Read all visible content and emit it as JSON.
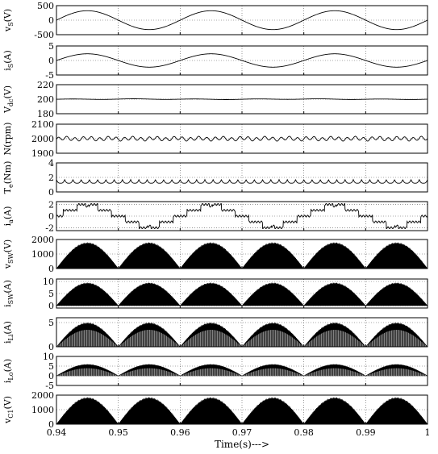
{
  "x_axis": {
    "label": "Time(s)--->",
    "range": [
      0.94,
      1.0
    ],
    "ticks": [
      0.94,
      0.95,
      0.96,
      0.97,
      0.98,
      0.99,
      1
    ],
    "tick_labels": [
      "0.94",
      "0.95",
      "0.96",
      "0.97",
      "0.98",
      "0.99",
      "1"
    ]
  },
  "chart_data": [
    {
      "type": "line",
      "ylabel": "v_S(V)",
      "ylabel_main": "v",
      "ylabel_sub": "S",
      "ylabel_unit": "(V)",
      "ylim": [
        -500,
        500
      ],
      "yticks": [
        -500,
        0,
        500
      ],
      "ytick_labels": [
        "-500",
        "0",
        "500"
      ],
      "grid": true,
      "color": "#000000",
      "waveform": {
        "kind": "sine",
        "amplitude": 325,
        "frequency_hz": 50,
        "dc_offset": 0
      }
    },
    {
      "type": "line",
      "ylabel": "i_S(A)",
      "ylabel_main": "i",
      "ylabel_sub": "S",
      "ylabel_unit": "(A)",
      "ylim": [
        -5,
        5
      ],
      "yticks": [
        -5,
        0,
        5
      ],
      "ytick_labels": [
        "-5",
        "0",
        "5"
      ],
      "grid": true,
      "color": "#000000",
      "waveform": {
        "kind": "sine",
        "amplitude": 2.3,
        "frequency_hz": 50,
        "dc_offset": 0
      }
    },
    {
      "type": "line",
      "ylabel": "V_dc(V)",
      "ylabel_main": "V",
      "ylabel_sub": "dc",
      "ylabel_unit": "(V)",
      "ylim": [
        180,
        220
      ],
      "yticks": [
        180,
        200,
        220
      ],
      "ytick_labels": [
        "180",
        "200",
        "220"
      ],
      "grid": true,
      "color": "#000000",
      "waveform": {
        "kind": "ripple",
        "dc_offset": 200,
        "amplitude": 0.4,
        "frequency_hz": 100
      }
    },
    {
      "type": "line",
      "ylabel": "N(rpm)",
      "ylabel_main": "N",
      "ylabel_sub": "",
      "ylabel_unit": "(rpm)",
      "ylim": [
        1900,
        2100
      ],
      "yticks": [
        1900,
        2000,
        2100
      ],
      "ytick_labels": [
        "1900",
        "2000",
        "2100"
      ],
      "grid": true,
      "color": "#000000",
      "waveform": {
        "kind": "ripple",
        "dc_offset": 2000,
        "amplitude": 12,
        "frequency_hz": 750
      }
    },
    {
      "type": "line",
      "ylabel": "T_e(Nm)",
      "ylabel_main": "T",
      "ylabel_sub": "e",
      "ylabel_unit": "(Nm)",
      "ylim": [
        0,
        4
      ],
      "yticks": [
        0,
        2,
        4
      ],
      "ytick_labels": [
        "0",
        "2",
        "4"
      ],
      "grid": true,
      "color": "#000000",
      "waveform": {
        "kind": "cusps",
        "dc_offset": 1.2,
        "amplitude": 0.5,
        "frequency_hz": 750
      }
    },
    {
      "type": "line",
      "ylabel": "i_a(A)",
      "ylabel_main": "i",
      "ylabel_sub": "a",
      "ylabel_unit": "(A)",
      "ylim": [
        -2.5,
        2.5
      ],
      "yticks": [
        -2,
        0,
        2
      ],
      "ytick_labels": [
        "-2",
        "0",
        "2"
      ],
      "grid": true,
      "color": "#000000",
      "waveform": {
        "kind": "phase_current",
        "amplitude": 2,
        "frequency_hz": 50
      }
    },
    {
      "type": "area",
      "ylabel": "v_SW(V)",
      "ylabel_main": "v",
      "ylabel_sub": "SW",
      "ylabel_unit": "(V)",
      "ylim": [
        0,
        2000
      ],
      "yticks": [
        0,
        1000,
        2000
      ],
      "ytick_labels": [
        "0",
        "1000",
        "2000"
      ],
      "grid": true,
      "color": "#000000",
      "waveform": {
        "kind": "pwm_envelope",
        "peak": 1800,
        "floor": 0,
        "frequency_hz": 100
      }
    },
    {
      "type": "area",
      "ylabel": "i_SW(A)",
      "ylabel_main": "i",
      "ylabel_sub": "SW",
      "ylabel_unit": "(A)",
      "ylim": [
        -1,
        11
      ],
      "yticks": [
        0,
        5,
        10
      ],
      "ytick_labels": [
        "0",
        "5",
        "10"
      ],
      "grid": true,
      "color": "#000000",
      "waveform": {
        "kind": "pwm_envelope",
        "peak": 9.5,
        "floor": 0,
        "frequency_hz": 100
      }
    },
    {
      "type": "area",
      "ylabel": "i_Li(A)",
      "ylabel_main": "i",
      "ylabel_sub": "Li",
      "ylabel_unit": "(A)",
      "ylim": [
        0,
        6
      ],
      "yticks": [
        0,
        5
      ],
      "ytick_labels": [
        "0",
        "5"
      ],
      "grid": true,
      "color": "#000000",
      "waveform": {
        "kind": "pwm_envelope",
        "peak": 5,
        "floor": 0,
        "frequency_hz": 100,
        "lower_ratio": 0.7
      }
    },
    {
      "type": "area",
      "ylabel": "i_Lo(A)",
      "ylabel_main": "i",
      "ylabel_sub": "Lo",
      "ylabel_unit": "(A)",
      "ylim": [
        -5,
        10
      ],
      "yticks": [
        -5,
        0,
        5,
        10
      ],
      "ytick_labels": [
        "-5",
        "0",
        "5",
        "10"
      ],
      "grid": true,
      "color": "#000000",
      "waveform": {
        "kind": "pwm_envelope",
        "peak": 6,
        "floor": 0,
        "frequency_hz": 100,
        "lower_ratio": 0.65
      }
    },
    {
      "type": "area",
      "ylabel": "v_C1(V)",
      "ylabel_main": "v",
      "ylabel_sub": "C1",
      "ylabel_unit": "(V)",
      "ylim": [
        0,
        2000
      ],
      "yticks": [
        0,
        1000,
        2000
      ],
      "ytick_labels": [
        "0",
        "1000",
        "2000"
      ],
      "grid": true,
      "color": "#000000",
      "waveform": {
        "kind": "pwm_envelope",
        "peak": 1850,
        "floor": 0,
        "frequency_hz": 100
      }
    }
  ]
}
